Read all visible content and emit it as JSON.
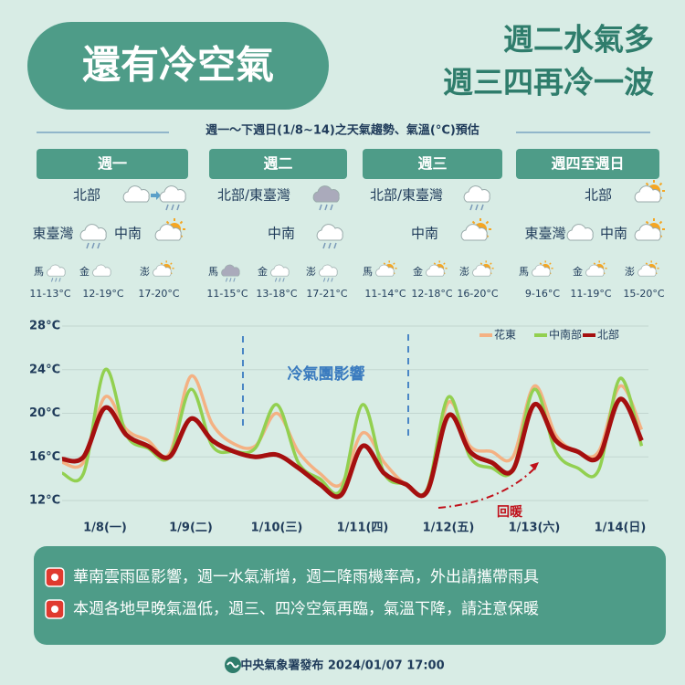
{
  "title": "還有冷空氣",
  "headline": [
    "週二水氣多",
    "週三四再冷一波"
  ],
  "subtitle": "週一～下週日(1/8~14)之天氣趨勢、氣溫(°C)預估",
  "columns": [
    {
      "header": "週一",
      "regions": [
        "北部",
        "東臺灣",
        "中南"
      ],
      "islands": [
        {
          "name": "馬",
          "temp": "11-13°C"
        },
        {
          "name": "金",
          "temp": "12-19°C"
        },
        {
          "name": "澎",
          "temp": "17-20°C"
        }
      ]
    },
    {
      "header": "週二",
      "regions": [
        "北部/東臺灣",
        "中南"
      ],
      "islands": [
        {
          "name": "馬",
          "temp": "11-15°C"
        },
        {
          "name": "金",
          "temp": "13-18°C"
        },
        {
          "name": "澎",
          "temp": "17-21°C"
        }
      ]
    },
    {
      "header": "週三",
      "regions": [
        "北部/東臺灣",
        "中南"
      ],
      "islands": [
        {
          "name": "馬",
          "temp": "11-14°C"
        },
        {
          "name": "金",
          "temp": "12-18°C"
        },
        {
          "name": "澎",
          "temp": "16-20°C"
        }
      ]
    },
    {
      "header": "週四至週日",
      "regions": [
        "北部",
        "東臺灣",
        "中南"
      ],
      "islands": [
        {
          "name": "馬",
          "temp": "9-16°C"
        },
        {
          "name": "金",
          "temp": "11-19°C"
        },
        {
          "name": "澎",
          "temp": "15-20°C"
        }
      ]
    }
  ],
  "chart_data": {
    "type": "line",
    "categories": [
      null,
      null,
      "1/8(一)",
      null,
      null,
      null,
      "1/9(二)",
      null,
      null,
      null,
      "1/10(三)",
      null,
      null,
      null,
      "1/11(四)",
      null,
      null,
      null,
      "1/12(五)",
      null,
      null,
      null,
      "1/13(六)",
      null,
      null,
      null,
      "1/14(日)",
      null
    ],
    "series": [
      {
        "name": "花東",
        "color": "#f4b183",
        "values": [
          15.5,
          15.5,
          21.5,
          18.5,
          17.5,
          16.3,
          23.4,
          19,
          17.2,
          17,
          20,
          16.5,
          14.5,
          13.5,
          18.2,
          15.5,
          13.5,
          13,
          21,
          17,
          16.5,
          16,
          22.5,
          18,
          16.5,
          16.5,
          22.5,
          18.5
        ]
      },
      {
        "name": "中南部",
        "color": "#92d050",
        "values": [
          14.5,
          14.5,
          24,
          18,
          16.8,
          16,
          22.2,
          17,
          16.5,
          16.8,
          20.8,
          15.5,
          14,
          13,
          20.8,
          14.5,
          13.5,
          13,
          21.5,
          16,
          15,
          14.8,
          22.2,
          16.5,
          15,
          14.8,
          23.2,
          17
        ]
      },
      {
        "name": "北部",
        "color": "#a50f0f",
        "values": [
          15.8,
          16,
          20.5,
          18,
          17,
          16,
          19.5,
          17.5,
          16.5,
          16,
          16.2,
          15,
          13.5,
          12.5,
          17,
          14.5,
          13.5,
          12.8,
          19.8,
          16.5,
          15.5,
          14.8,
          20.8,
          17.5,
          16.5,
          16,
          21.3,
          17.5
        ]
      }
    ],
    "ylim": [
      12,
      28
    ],
    "yticks": [
      {
        "value": 12,
        "label": "12°C"
      },
      {
        "value": 16,
        "label": "16°C"
      },
      {
        "value": 20,
        "label": "20°C"
      },
      {
        "value": 24,
        "label": "24°C"
      },
      {
        "value": 28,
        "label": "28°C"
      }
    ],
    "grid": true,
    "legend": "top-right",
    "annotations": [
      "冷氣團影響",
      "回暖"
    ]
  },
  "notes": [
    "華南雲雨區影響，週一水氣漸增，週二降雨機率高，外出請攜帶雨具",
    "本週各地早晚氣溫低，週三、四冷空氣再臨，氣溫下降，請注意保暖"
  ],
  "footer": "中央氣象署發布 2024/01/07 17:00"
}
